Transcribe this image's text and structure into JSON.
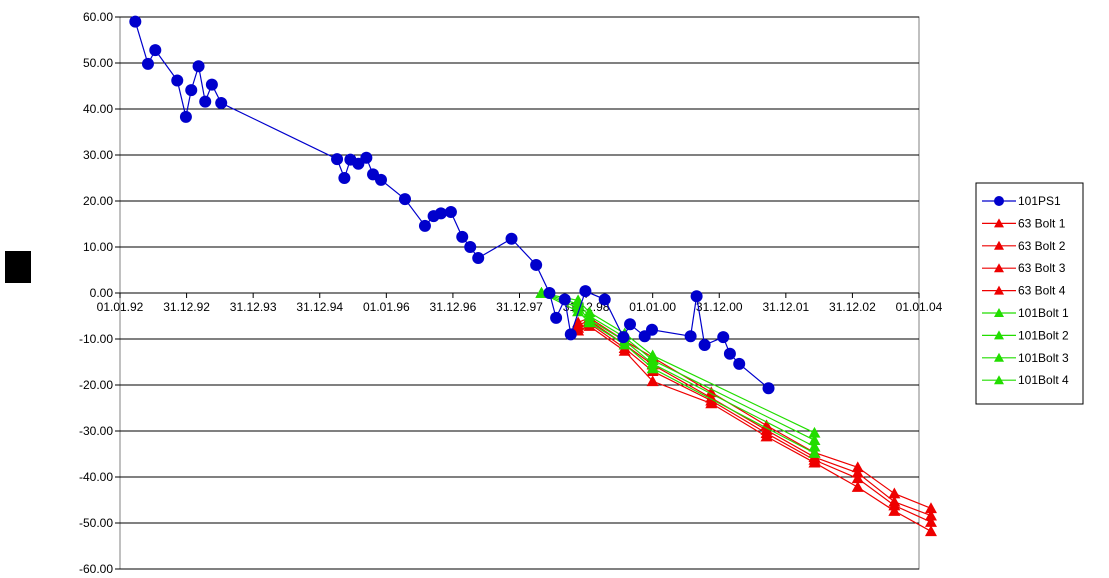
{
  "chart_data": {
    "type": "line",
    "title": "",
    "xlabel": "",
    "ylabel": "",
    "ylim": [
      -60,
      60
    ],
    "y_ticks": [
      "60.00",
      "50.00",
      "40.00",
      "30.00",
      "20.00",
      "10.00",
      "0.00",
      "-10.00",
      "-20.00",
      "-30.00",
      "-40.00",
      "-50.00",
      "-60.00"
    ],
    "x_ticks": [
      "01.01.92",
      "31.12.92",
      "31.12.93",
      "31.12.94",
      "01.01.96",
      "31.12.96",
      "31.12.97",
      "31.12.98",
      "01.01.00",
      "31.12.00",
      "31.12.01",
      "31.12.02",
      "01.01.04"
    ],
    "grid": "horizontal",
    "legend_position": "right",
    "colors": {
      "ps": "#0000cc",
      "bolt63": "#ee0000",
      "bolt101": "#22dd00"
    },
    "series": [
      {
        "name": "101PS1",
        "color": "#0000cc",
        "marker": "circle",
        "points": [
          [
            1992.23,
            59
          ],
          [
            1992.42,
            49.8
          ],
          [
            1992.53,
            52.8
          ],
          [
            1992.86,
            46.2
          ],
          [
            1992.99,
            38.3
          ],
          [
            1993.07,
            44.1
          ],
          [
            1993.18,
            49.3
          ],
          [
            1993.28,
            41.6
          ],
          [
            1993.38,
            45.3
          ],
          [
            1993.52,
            41.3
          ],
          [
            1995.26,
            29.1
          ],
          [
            1995.37,
            25.0
          ],
          [
            1995.46,
            29.0
          ],
          [
            1995.58,
            28.1
          ],
          [
            1995.7,
            29.4
          ],
          [
            1995.8,
            25.8
          ],
          [
            1995.92,
            24.6
          ],
          [
            1996.28,
            20.4
          ],
          [
            1996.58,
            14.6
          ],
          [
            1996.71,
            16.7
          ],
          [
            1996.82,
            17.3
          ],
          [
            1996.97,
            17.6
          ],
          [
            1997.14,
            12.2
          ],
          [
            1997.26,
            10.0
          ],
          [
            1997.38,
            7.6
          ],
          [
            1997.88,
            11.8
          ],
          [
            1998.25,
            6.1
          ],
          [
            1998.45,
            0.0
          ],
          [
            1998.55,
            -5.4
          ],
          [
            1998.68,
            -1.4
          ],
          [
            1998.77,
            -9.0
          ],
          [
            1998.99,
            0.4
          ],
          [
            1999.28,
            -1.4
          ],
          [
            1999.56,
            -9.6
          ],
          [
            1999.66,
            -6.8
          ],
          [
            1999.88,
            -9.4
          ],
          [
            1999.99,
            -8.0
          ],
          [
            2000.57,
            -9.4
          ],
          [
            2000.66,
            -0.7
          ],
          [
            2000.78,
            -11.3
          ],
          [
            2001.06,
            -9.6
          ],
          [
            2001.16,
            -13.2
          ],
          [
            2001.3,
            -15.4
          ],
          [
            2001.74,
            -20.7
          ]
        ]
      },
      {
        "name": "63 Bolt 1",
        "color": "#ee0000",
        "marker": "triangle",
        "points": [
          [
            1998.88,
            -6.4
          ],
          [
            1999.05,
            -5.4
          ],
          [
            1999.58,
            -10.4
          ],
          [
            2000.0,
            -14.0
          ],
          [
            2000.88,
            -21.6
          ],
          [
            2001.71,
            -28.8
          ],
          [
            2002.43,
            -34.7
          ],
          [
            2003.08,
            -37.9
          ],
          [
            2003.63,
            -43.6
          ],
          [
            2004.18,
            -46.8
          ]
        ]
      },
      {
        "name": "63 Bolt 2",
        "color": "#ee0000",
        "marker": "triangle",
        "points": [
          [
            1998.88,
            -7.0
          ],
          [
            1999.05,
            -6.0
          ],
          [
            1999.58,
            -11.2
          ],
          [
            2000.0,
            -15.6
          ],
          [
            2000.88,
            -22.8
          ],
          [
            2001.71,
            -29.8
          ],
          [
            2002.43,
            -35.7
          ],
          [
            2003.08,
            -39.1
          ],
          [
            2003.63,
            -45.4
          ],
          [
            2004.18,
            -48.4
          ]
        ]
      },
      {
        "name": "63 Bolt 3",
        "color": "#ee0000",
        "marker": "triangle",
        "points": [
          [
            1998.88,
            -7.6
          ],
          [
            1999.05,
            -6.6
          ],
          [
            1999.58,
            -12.0
          ],
          [
            2000.0,
            -17.0
          ],
          [
            2000.88,
            -23.4
          ],
          [
            2001.71,
            -30.5
          ],
          [
            2002.43,
            -36.3
          ],
          [
            2003.08,
            -40.3
          ],
          [
            2003.63,
            -46.2
          ],
          [
            2004.18,
            -49.8
          ]
        ]
      },
      {
        "name": "63 Bolt 4",
        "color": "#ee0000",
        "marker": "triangle",
        "points": [
          [
            1998.88,
            -8.2
          ],
          [
            1999.05,
            -7.2
          ],
          [
            1999.58,
            -12.6
          ],
          [
            2000.0,
            -19.2
          ],
          [
            2000.88,
            -24.0
          ],
          [
            2001.71,
            -31.2
          ],
          [
            2002.43,
            -36.9
          ],
          [
            2003.08,
            -42.2
          ],
          [
            2003.63,
            -47.4
          ],
          [
            2004.18,
            -51.8
          ]
        ]
      },
      {
        "name": "101Bolt 1",
        "color": "#22dd00",
        "marker": "triangle",
        "points": [
          [
            1998.33,
            0.0
          ],
          [
            1998.88,
            -1.6
          ],
          [
            1999.05,
            -4.2
          ],
          [
            1999.58,
            -8.8
          ],
          [
            2000.0,
            -13.6
          ],
          [
            2002.43,
            -30.4
          ]
        ]
      },
      {
        "name": "101Bolt 2",
        "color": "#22dd00",
        "marker": "triangle",
        "points": [
          [
            1998.33,
            0.0
          ],
          [
            1998.88,
            -2.4
          ],
          [
            1999.05,
            -5.0
          ],
          [
            1999.58,
            -9.6
          ],
          [
            2000.0,
            -14.6
          ],
          [
            2002.43,
            -32.0
          ]
        ]
      },
      {
        "name": "101Bolt 3",
        "color": "#22dd00",
        "marker": "triangle",
        "points": [
          [
            1998.33,
            0.0
          ],
          [
            1998.88,
            -3.2
          ],
          [
            1999.05,
            -5.8
          ],
          [
            1999.58,
            -10.4
          ],
          [
            2000.0,
            -15.4
          ],
          [
            2002.43,
            -33.4
          ]
        ]
      },
      {
        "name": "101Bolt 4",
        "color": "#22dd00",
        "marker": "triangle",
        "points": [
          [
            1998.33,
            0.0
          ],
          [
            1998.88,
            -4.0
          ],
          [
            1999.05,
            -6.4
          ],
          [
            1999.58,
            -11.2
          ],
          [
            2000.0,
            -16.4
          ],
          [
            2002.43,
            -34.8
          ]
        ]
      }
    ]
  }
}
